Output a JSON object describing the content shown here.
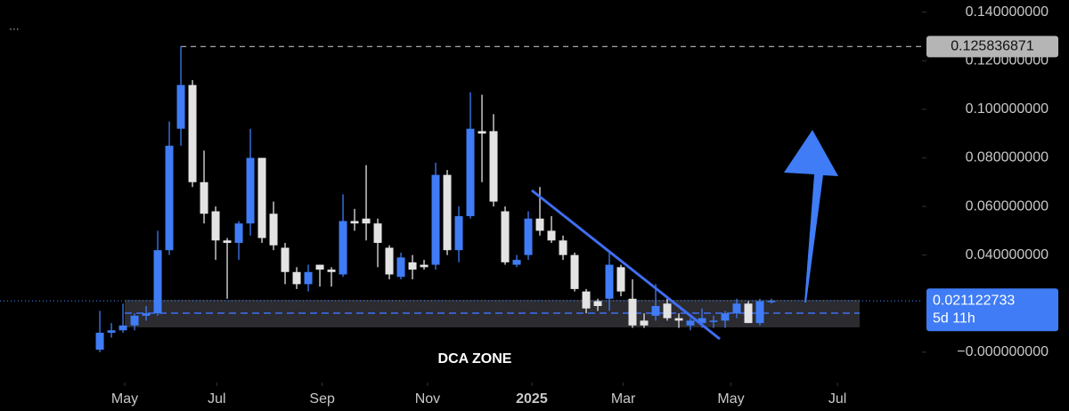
{
  "chart_data": {
    "type": "candlestick",
    "menu": "...",
    "annotation": "DCA ZONE",
    "countdown": "5d 11h",
    "high": 0.125836871,
    "last": 0.021122733,
    "up_color": "#3f7cf5",
    "down_color": "#e3e3e3",
    "open": [
      0.001,
      0.008,
      0.009,
      0.011,
      0.015,
      0.016,
      0.042,
      0.092,
      0.11,
      0.07,
      0.058,
      0.046,
      0.045,
      0.053,
      0.08,
      0.057,
      0.043,
      0.033,
      0.028,
      0.036,
      0.034,
      0.032,
      0.054,
      0.055,
      0.053,
      0.043,
      0.031,
      0.037,
      0.036,
      0.036,
      0.073,
      0.042,
      0.056,
      0.091,
      0.091,
      0.058,
      0.036,
      0.04,
      0.055,
      0.05,
      0.046,
      0.04,
      0.025,
      0.021,
      0.022,
      0.035,
      0.022,
      0.013,
      0.015,
      0.02,
      0.014,
      0.011,
      0.012,
      0.013,
      0.013,
      0.016,
      0.02,
      0.012,
      0.021
    ],
    "high_values": [
      0.017,
      0.012,
      0.02,
      0.016,
      0.019,
      0.05,
      0.095,
      0.126,
      0.112,
      0.083,
      0.06,
      0.047,
      0.054,
      0.092,
      0.08,
      0.062,
      0.045,
      0.035,
      0.036,
      0.036,
      0.035,
      0.065,
      0.059,
      0.077,
      0.055,
      0.044,
      0.041,
      0.04,
      0.038,
      0.078,
      0.075,
      0.06,
      0.107,
      0.106,
      0.098,
      0.06,
      0.04,
      0.058,
      0.068,
      0.056,
      0.048,
      0.041,
      0.026,
      0.022,
      0.042,
      0.036,
      0.03,
      0.016,
      0.028,
      0.023,
      0.016,
      0.014,
      0.018,
      0.015,
      0.017,
      0.022,
      0.021,
      0.022,
      0.022
    ],
    "low": [
      0.0,
      0.006,
      0.008,
      0.009,
      0.013,
      0.015,
      0.04,
      0.085,
      0.068,
      0.053,
      0.038,
      0.022,
      0.038,
      0.048,
      0.045,
      0.042,
      0.028,
      0.026,
      0.025,
      0.027,
      0.027,
      0.031,
      0.05,
      0.046,
      0.035,
      0.03,
      0.03,
      0.03,
      0.034,
      0.034,
      0.04,
      0.037,
      0.055,
      0.07,
      0.06,
      0.036,
      0.035,
      0.038,
      0.048,
      0.045,
      0.038,
      0.025,
      0.016,
      0.017,
      0.017,
      0.023,
      0.01,
      0.01,
      0.013,
      0.013,
      0.01,
      0.009,
      0.01,
      0.01,
      0.01,
      0.014,
      0.012,
      0.011,
      0.02
    ],
    "close": [
      0.008,
      0.009,
      0.011,
      0.015,
      0.016,
      0.042,
      0.085,
      0.11,
      0.07,
      0.057,
      0.046,
      0.045,
      0.053,
      0.08,
      0.047,
      0.044,
      0.033,
      0.028,
      0.033,
      0.034,
      0.033,
      0.054,
      0.053,
      0.053,
      0.045,
      0.032,
      0.039,
      0.034,
      0.035,
      0.073,
      0.042,
      0.056,
      0.092,
      0.09,
      0.062,
      0.037,
      0.038,
      0.055,
      0.05,
      0.046,
      0.04,
      0.026,
      0.018,
      0.019,
      0.036,
      0.025,
      0.011,
      0.011,
      0.019,
      0.014,
      0.013,
      0.013,
      0.014,
      0.013,
      0.016,
      0.02,
      0.012,
      0.021,
      0.0211
    ],
    "xlim": [
      -8.62,
      71.0
    ],
    "xticks": [
      {
        "value": 2.15,
        "label": "May"
      },
      {
        "value": 10.1,
        "label": "Jul"
      },
      {
        "value": 19.2,
        "label": "Sep"
      },
      {
        "value": 28.3,
        "label": "Nov"
      },
      {
        "value": 37.3,
        "label": "2025"
      },
      {
        "value": 45.2,
        "label": "Mar"
      },
      {
        "value": 54.5,
        "label": "May"
      },
      {
        "value": 63.7,
        "label": "Jul"
      }
    ],
    "ylim": [
      -0.0125,
      0.145
    ],
    "yticks": [
      {
        "value": 0.14,
        "label": "0.140000000"
      },
      {
        "value": 0.12,
        "label": "0.120000000"
      },
      {
        "value": 0.1,
        "label": "0.100000000"
      },
      {
        "value": 0.08,
        "label": "0.080000000"
      },
      {
        "value": 0.06,
        "label": "0.060000000"
      },
      {
        "value": 0.04,
        "label": "0.040000000"
      },
      {
        "value": 0,
        "label": "−0.000000000"
      }
    ]
  }
}
